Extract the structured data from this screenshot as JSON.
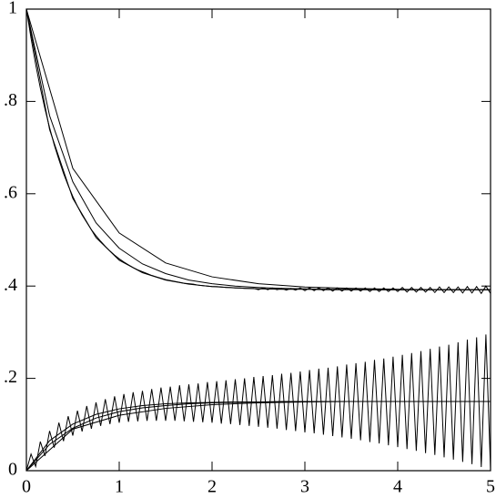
{
  "chart_data": {
    "type": "line",
    "xlim": [
      0,
      5
    ],
    "ylim": [
      0,
      1
    ],
    "xticks": [
      0,
      1,
      2,
      3,
      4,
      5
    ],
    "yticks": [
      {
        "value": 0,
        "label": "0"
      },
      {
        "value": 0.2,
        "label": ".2"
      },
      {
        "value": 0.4,
        "label": ".4"
      },
      {
        "value": 0.6,
        "label": ".6"
      },
      {
        "value": 0.8,
        "label": ".8"
      },
      {
        "value": 1,
        "label": "1"
      }
    ],
    "series": [
      {
        "color": "#000000",
        "x": [
          0,
          0.5,
          1,
          1.5,
          2,
          2.5,
          3,
          3.5,
          4,
          4.5,
          5
        ],
        "values": [
          1,
          0.655,
          0.515,
          0.45,
          0.42,
          0.405,
          0.398,
          0.395,
          0.393,
          0.392,
          0.392
        ]
      },
      {
        "color": "#000000",
        "x": [
          0,
          0.5,
          1,
          1.5,
          2,
          2.5,
          3,
          3.5,
          4,
          4.5,
          5
        ],
        "values": [
          0,
          0.09,
          0.12,
          0.135,
          0.143,
          0.147,
          0.149,
          0.15,
          0.15,
          0.15,
          0.15
        ]
      },
      {
        "color": "#000000",
        "x": [
          0,
          0.25,
          0.5,
          0.75,
          1,
          1.25,
          1.5,
          1.75,
          2,
          2.25,
          2.5,
          2.75,
          3,
          3.25,
          3.5,
          3.75,
          4,
          4.25,
          4.5,
          4.75,
          5
        ],
        "values": [
          1,
          0.769,
          0.626,
          0.537,
          0.482,
          0.448,
          0.427,
          0.413,
          0.405,
          0.4,
          0.397,
          0.395,
          0.394,
          0.393,
          0.393,
          0.392,
          0.392,
          0.392,
          0.392,
          0.392,
          0.392
        ]
      },
      {
        "color": "#000000",
        "x": [
          0,
          0.25,
          0.5,
          0.75,
          1,
          1.25,
          1.5,
          1.75,
          2,
          2.25,
          2.5,
          2.75,
          3,
          3.25,
          3.5,
          3.75,
          4,
          4.25,
          4.5,
          4.75,
          5
        ],
        "values": [
          0,
          0.057,
          0.092,
          0.114,
          0.128,
          0.136,
          0.141,
          0.145,
          0.147,
          0.148,
          0.149,
          0.149,
          0.15,
          0.15,
          0.15,
          0.15,
          0.15,
          0.15,
          0.15,
          0.15,
          0.15
        ]
      },
      {
        "color": "#000000",
        "x": [
          0,
          0.25,
          0.5,
          0.75,
          1,
          1.25,
          1.5,
          1.75,
          2,
          2.25,
          2.5,
          2.75,
          3,
          3.25,
          3.5,
          3.75,
          4,
          4.25,
          4.5,
          4.75,
          5
        ],
        "values": [
          1,
          0.739,
          0.59,
          0.505,
          0.456,
          0.429,
          0.413,
          0.404,
          0.399,
          0.396,
          0.394,
          0.393,
          0.393,
          0.392,
          0.392,
          0.392,
          0.392,
          0.392,
          0.392,
          0.392,
          0.392
        ]
      },
      {
        "color": "#000000",
        "x": [
          0,
          0.25,
          0.5,
          0.75,
          1,
          1.25,
          1.5,
          1.75,
          2,
          2.25,
          2.5,
          2.75,
          3,
          3.25,
          3.5,
          3.75,
          4,
          4.25,
          4.5,
          4.75,
          5
        ],
        "values": [
          0,
          0.065,
          0.101,
          0.122,
          0.134,
          0.141,
          0.145,
          0.147,
          0.148,
          0.149,
          0.149,
          0.15,
          0.15,
          0.15,
          0.15,
          0.15,
          0.15,
          0.15,
          0.15,
          0.15,
          0.15
        ]
      },
      {
        "color": "#000000",
        "x": [
          0,
          0.05,
          0.1,
          0.15,
          0.2,
          0.25,
          0.3,
          0.35,
          0.4,
          0.45,
          0.5,
          0.55,
          0.6,
          0.65,
          0.7,
          0.75,
          0.8,
          0.85,
          0.9,
          0.95,
          1,
          1.05,
          1.1,
          1.15,
          1.2,
          1.25,
          1.3,
          1.35,
          1.4,
          1.45,
          1.5,
          1.55,
          1.6,
          1.65,
          1.7,
          1.75,
          1.8,
          1.85,
          1.9,
          1.95,
          2,
          2.05,
          2.1,
          2.15,
          2.2,
          2.25,
          2.3,
          2.35,
          2.4,
          2.45,
          2.5,
          2.55,
          2.6,
          2.65,
          2.7,
          2.75,
          2.8,
          2.85,
          2.9,
          2.95,
          3,
          3.05,
          3.1,
          3.15,
          3.2,
          3.25,
          3.3,
          3.35,
          3.4,
          3.45,
          3.5,
          3.55,
          3.6,
          3.65,
          3.7,
          3.75,
          3.8,
          3.85,
          3.9,
          3.95,
          4,
          4.05,
          4.1,
          4.15,
          4.2,
          4.25,
          4.3,
          4.35,
          4.4,
          4.45,
          4.5,
          4.55,
          4.6,
          4.65,
          4.7,
          4.75,
          4.8,
          4.85,
          4.9,
          4.95,
          5
        ],
        "values": [
          1,
          0.937,
          0.88,
          0.829,
          0.784,
          0.743,
          0.706,
          0.674,
          0.644,
          0.618,
          0.594,
          0.573,
          0.554,
          0.538,
          0.522,
          0.509,
          0.497,
          0.486,
          0.476,
          0.467,
          0.459,
          0.452,
          0.446,
          0.44,
          0.435,
          0.431,
          0.427,
          0.423,
          0.42,
          0.417,
          0.414,
          0.412,
          0.41,
          0.408,
          0.406,
          0.405,
          0.404,
          0.402,
          0.401,
          0.4,
          0.399,
          0.399,
          0.398,
          0.397,
          0.397,
          0.396,
          0.396,
          0.395,
          0.395,
          0.395,
          0.392,
          0.396,
          0.392,
          0.396,
          0.392,
          0.395,
          0.391,
          0.395,
          0.391,
          0.396,
          0.39,
          0.396,
          0.39,
          0.396,
          0.39,
          0.396,
          0.389,
          0.396,
          0.389,
          0.396,
          0.389,
          0.396,
          0.389,
          0.396,
          0.388,
          0.396,
          0.388,
          0.396,
          0.388,
          0.396,
          0.388,
          0.397,
          0.387,
          0.397,
          0.387,
          0.397,
          0.387,
          0.397,
          0.386,
          0.398,
          0.386,
          0.398,
          0.386,
          0.398,
          0.385,
          0.399,
          0.385,
          0.399,
          0.384,
          0.4,
          0.384
        ]
      },
      {
        "color": "#000000",
        "x": [
          0,
          0.05,
          0.1,
          0.15,
          0.2,
          0.25,
          0.3,
          0.35,
          0.4,
          0.45,
          0.5,
          0.55,
          0.6,
          0.65,
          0.7,
          0.75,
          0.8,
          0.85,
          0.9,
          0.95,
          1,
          1.05,
          1.1,
          1.15,
          1.2,
          1.25,
          1.3,
          1.35,
          1.4,
          1.45,
          1.5,
          1.55,
          1.6,
          1.65,
          1.7,
          1.75,
          1.8,
          1.85,
          1.9,
          1.95,
          2,
          2.05,
          2.1,
          2.15,
          2.2,
          2.25,
          2.3,
          2.35,
          2.4,
          2.45,
          2.5,
          2.55,
          2.6,
          2.65,
          2.7,
          2.75,
          2.8,
          2.85,
          2.9,
          2.95,
          3,
          3.05,
          3.1,
          3.15,
          3.2,
          3.25,
          3.3,
          3.35,
          3.4,
          3.45,
          3.5,
          3.55,
          3.6,
          3.65,
          3.7,
          3.75,
          3.8,
          3.85,
          3.9,
          3.95,
          4,
          4.05,
          4.1,
          4.15,
          4.2,
          4.25,
          4.3,
          4.35,
          4.4,
          4.45,
          4.5,
          4.55,
          4.6,
          4.65,
          4.7,
          4.75,
          4.8,
          4.85,
          4.9,
          4.95,
          5
        ],
        "values": [
          0,
          0.036,
          0.009,
          0.063,
          0.032,
          0.086,
          0.05,
          0.104,
          0.064,
          0.118,
          0.076,
          0.13,
          0.085,
          0.14,
          0.091,
          0.148,
          0.097,
          0.155,
          0.101,
          0.161,
          0.104,
          0.166,
          0.106,
          0.17,
          0.107,
          0.173,
          0.108,
          0.177,
          0.108,
          0.18,
          0.108,
          0.182,
          0.108,
          0.185,
          0.107,
          0.187,
          0.106,
          0.189,
          0.105,
          0.192,
          0.104,
          0.194,
          0.102,
          0.196,
          0.101,
          0.198,
          0.099,
          0.2,
          0.097,
          0.203,
          0.095,
          0.205,
          0.093,
          0.207,
          0.091,
          0.21,
          0.088,
          0.212,
          0.086,
          0.215,
          0.083,
          0.218,
          0.081,
          0.221,
          0.078,
          0.223,
          0.075,
          0.226,
          0.072,
          0.23,
          0.069,
          0.233,
          0.066,
          0.236,
          0.062,
          0.24,
          0.059,
          0.243,
          0.055,
          0.247,
          0.051,
          0.251,
          0.047,
          0.255,
          0.043,
          0.259,
          0.038,
          0.264,
          0.034,
          0.269,
          0.029,
          0.273,
          0.024,
          0.278,
          0.019,
          0.284,
          0.014,
          0.289,
          0.008,
          0.295,
          0.002
        ]
      }
    ]
  }
}
